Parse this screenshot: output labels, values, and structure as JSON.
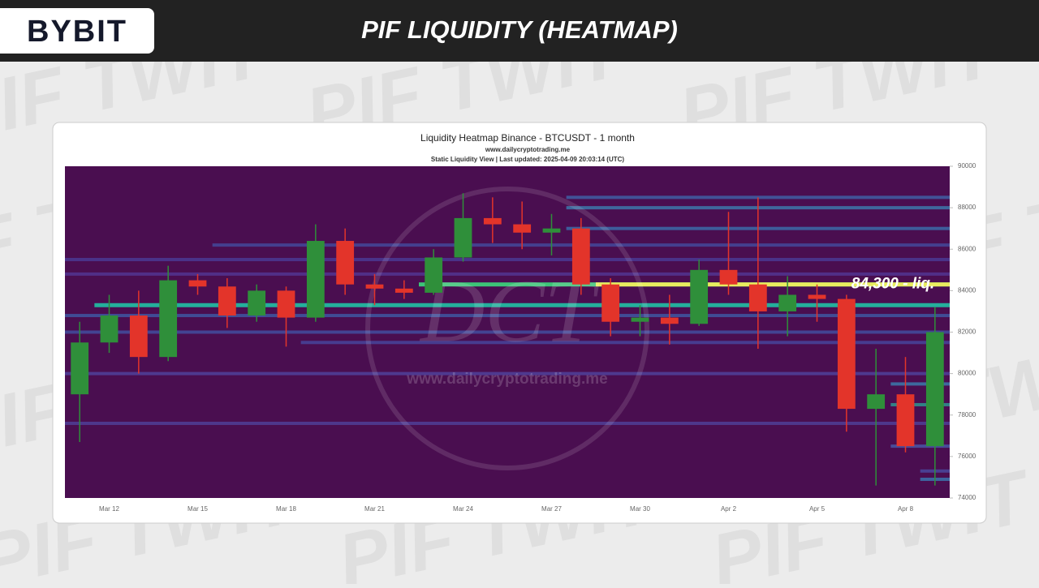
{
  "header": {
    "logo": "BYBIT",
    "title": "PIF LIQUIDITY (HEATMAP)",
    "watermark": "PIF TWIT"
  },
  "chart_data": {
    "type": "candlestick",
    "title": "Liquidity Heatmap Binance - BTCUSDT - 1 month",
    "subtitle": "www.dailycryptotrading.me",
    "note": "Static Liquidity View | Last updated: 2025-04-09 20:03:14 (UTC)",
    "watermark": "www.dailycryptotrading.me",
    "watermark_logo": "DCT",
    "annotation": "84,300 - liq.",
    "categories": [
      null,
      "Mar 12",
      null,
      null,
      "Mar 15",
      null,
      null,
      "Mar 18",
      null,
      null,
      "Mar 21",
      null,
      null,
      "Mar 24",
      null,
      null,
      "Mar 27",
      null,
      null,
      "Mar 30",
      null,
      null,
      "Apr 2",
      null,
      null,
      "Apr 5",
      null,
      null,
      "Apr 8",
      null
    ],
    "open": [
      79000,
      81500,
      82800,
      80800,
      84500,
      84200,
      82800,
      84000,
      82700,
      86400,
      84300,
      84100,
      83900,
      85600,
      87500,
      87200,
      86800,
      87000,
      84300,
      82500,
      82700,
      82400,
      85000,
      84300,
      83000,
      83800,
      83600,
      78300,
      79000,
      76500
    ],
    "high": [
      82500,
      83800,
      84000,
      85200,
      84800,
      84600,
      84300,
      84200,
      87200,
      87000,
      84800,
      84500,
      86000,
      88700,
      88500,
      88300,
      87700,
      87500,
      84600,
      83300,
      83800,
      85500,
      87800,
      88500,
      84700,
      84300,
      83800,
      81200,
      80800,
      83200
    ],
    "low": [
      76700,
      81000,
      80000,
      80600,
      83800,
      82200,
      82500,
      81300,
      82500,
      83800,
      83300,
      83600,
      83800,
      85400,
      86300,
      86000,
      85700,
      83800,
      81800,
      81800,
      81400,
      82300,
      83800,
      81200,
      81800,
      82500,
      77200,
      74600,
      76200,
      74600
    ],
    "close": [
      81500,
      82800,
      80800,
      84500,
      84200,
      82800,
      84000,
      82700,
      86400,
      84300,
      84100,
      83900,
      85600,
      87500,
      87200,
      86800,
      87000,
      84300,
      82500,
      82700,
      82400,
      85000,
      84300,
      83000,
      83800,
      83600,
      78300,
      79000,
      76500,
      82000
    ],
    "up_color": "#2f8f3a",
    "down_color": "#e3342a",
    "background": "#4a0e50",
    "liquidity_bands": [
      {
        "price": 85500,
        "start": 0,
        "color": "#4b3f9c"
      },
      {
        "price": 84800,
        "start": 0,
        "color": "#54399a"
      },
      {
        "price": 82800,
        "start": 0,
        "color": "#3d62ac"
      },
      {
        "price": 82000,
        "start": 0,
        "color": "#4256a8"
      },
      {
        "price": 81500,
        "start": 8,
        "color": "#474ca4"
      },
      {
        "price": 80000,
        "start": 0,
        "color": "#5048a4"
      },
      {
        "price": 77600,
        "start": 0,
        "color": "#5046a0"
      },
      {
        "price": 86200,
        "start": 5,
        "color": "#4350a4"
      },
      {
        "price": 88500,
        "start": 17,
        "color": "#3f6aae"
      },
      {
        "price": 88000,
        "start": 17,
        "color": "#3b86b6"
      },
      {
        "price": 87000,
        "start": 17,
        "color": "#3a78b4"
      },
      {
        "price": 79500,
        "start": 28,
        "color": "#3a8ab8"
      },
      {
        "price": 78500,
        "start": 28,
        "color": "#29a898"
      },
      {
        "price": 76500,
        "start": 28,
        "color": "#4a60b0"
      },
      {
        "price": 75300,
        "start": 29,
        "color": "#4a50a8"
      },
      {
        "price": 74900,
        "start": 29,
        "color": "#3a80b8"
      },
      {
        "price": 83300,
        "start": 1,
        "color": "#22b8a0"
      },
      {
        "price": 84300,
        "start": 12,
        "color": "#3ccf7a"
      },
      {
        "price": 84300,
        "start": 18,
        "color": "#f2ee5e"
      }
    ],
    "ylim": [
      74000,
      90000
    ],
    "yticks": [
      74000,
      76000,
      78000,
      80000,
      82000,
      84000,
      86000,
      88000,
      90000
    ]
  }
}
